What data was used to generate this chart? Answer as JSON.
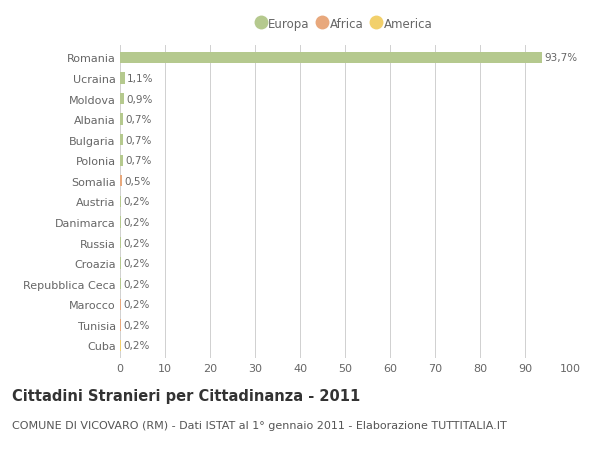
{
  "countries": [
    "Romania",
    "Ucraina",
    "Moldova",
    "Albania",
    "Bulgaria",
    "Polonia",
    "Somalia",
    "Austria",
    "Danimarca",
    "Russia",
    "Croazia",
    "Repubblica Ceca",
    "Marocco",
    "Tunisia",
    "Cuba"
  ],
  "values": [
    93.7,
    1.1,
    0.9,
    0.7,
    0.7,
    0.7,
    0.5,
    0.2,
    0.2,
    0.2,
    0.2,
    0.2,
    0.2,
    0.2,
    0.2
  ],
  "labels": [
    "93,7%",
    "1,1%",
    "0,9%",
    "0,7%",
    "0,7%",
    "0,7%",
    "0,5%",
    "0,2%",
    "0,2%",
    "0,2%",
    "0,2%",
    "0,2%",
    "0,2%",
    "0,2%",
    "0,2%"
  ],
  "continents": [
    "Europa",
    "Europa",
    "Europa",
    "Europa",
    "Europa",
    "Europa",
    "Africa",
    "Europa",
    "Europa",
    "Europa",
    "Europa",
    "Europa",
    "Africa",
    "Africa",
    "America"
  ],
  "colors": {
    "Europa": "#b5c98e",
    "Africa": "#e8a87c",
    "America": "#f2d06b"
  },
  "legend_items": [
    "Europa",
    "Africa",
    "America"
  ],
  "legend_colors": [
    "#b5c98e",
    "#e8a87c",
    "#f2d06b"
  ],
  "xlim": [
    0,
    100
  ],
  "xticks": [
    0,
    10,
    20,
    30,
    40,
    50,
    60,
    70,
    80,
    90,
    100
  ],
  "title": "Cittadini Stranieri per Cittadinanza - 2011",
  "subtitle": "COMUNE DI VICOVARO (RM) - Dati ISTAT al 1° gennaio 2011 - Elaborazione TUTTITALIA.IT",
  "background_color": "#ffffff",
  "grid_color": "#d0d0d0",
  "bar_height": 0.55,
  "title_fontsize": 10.5,
  "subtitle_fontsize": 8,
  "label_fontsize": 7.5,
  "tick_fontsize": 8,
  "ylabel_color": "#666666",
  "value_label_color": "#666666"
}
